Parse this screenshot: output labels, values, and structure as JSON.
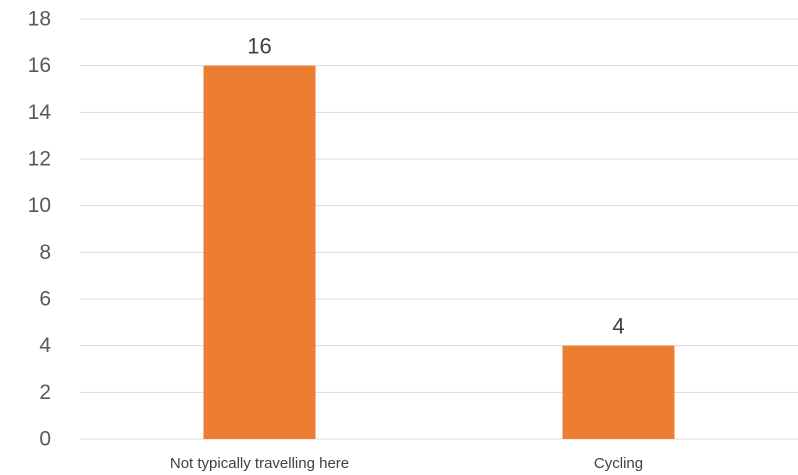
{
  "chart_data": {
    "type": "bar",
    "categories": [
      "Not typically travelling here",
      "Cycling"
    ],
    "values": [
      16,
      4
    ],
    "data_labels": [
      "16",
      "4"
    ],
    "title": "",
    "xlabel": "",
    "ylabel": "",
    "ylim": [
      0,
      18
    ],
    "y_ticks": [
      "0",
      "2",
      "4",
      "6",
      "8",
      "10",
      "12",
      "14",
      "16",
      "18"
    ],
    "grid": true,
    "legend": "none",
    "colors": {
      "bar": "#ED7D31",
      "grid": "#D9D9D9"
    }
  }
}
